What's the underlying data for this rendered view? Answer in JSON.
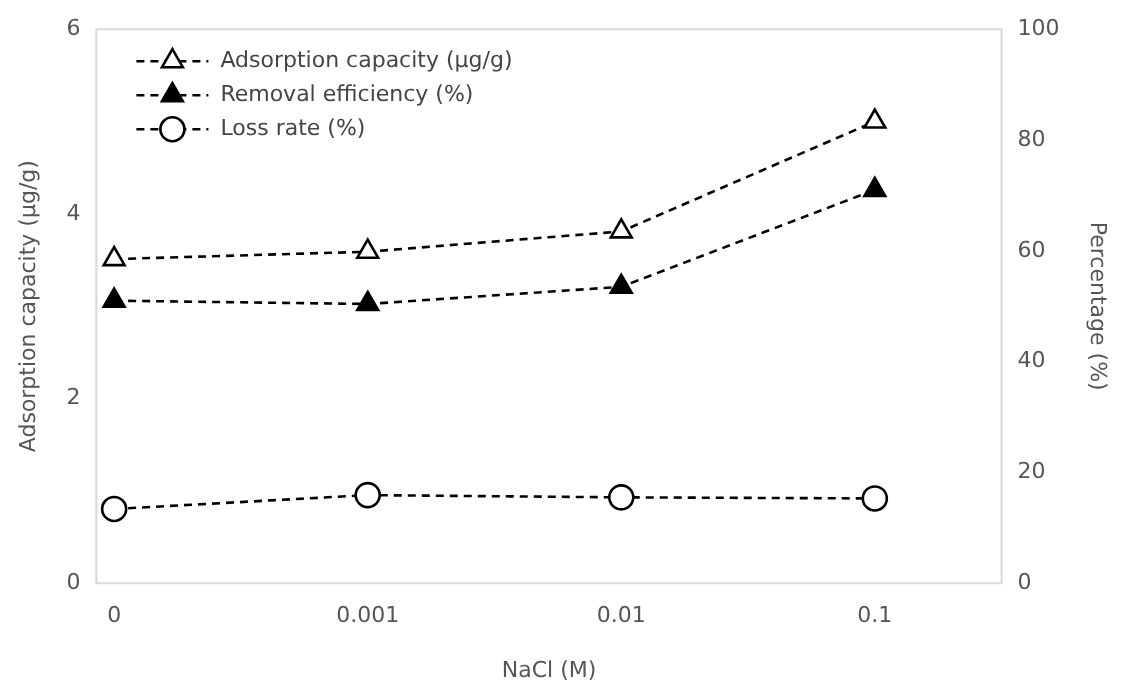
{
  "chart_data": {
    "type": "line",
    "xlabel": "NaCl (M)",
    "ylabel": "Adsorption capacity (μg/g)",
    "y2label": "Percentage (%)",
    "categories": [
      "0",
      "0.001",
      "0.01",
      "0.1"
    ],
    "series": [
      {
        "name": "Adsorption capacity (μg/g)",
        "color": "#000000",
        "marker": "triangle",
        "values": [
          3.51,
          3.59,
          3.81,
          5.0
        ]
      },
      {
        "name": "Removal efficiency (%)",
        "color": "#000000",
        "marker": "triangle",
        "axis": "y2",
        "values": [
          51.0,
          50.4,
          53.5,
          71.0
        ]
      },
      {
        "name": "Loss rate (%)",
        "color": "#000000",
        "marker": "circle",
        "axis": "y2",
        "values": [
          13.4,
          15.9,
          15.5,
          15.3
        ]
      }
    ],
    "ylim": [
      0,
      6
    ],
    "yticks": [
      0,
      2,
      4,
      6
    ],
    "y2lim": [
      0,
      100
    ],
    "y2ticks": [
      0,
      20,
      40,
      60,
      80,
      100
    ],
    "grid": false,
    "legend": "top left",
    "line_style": "dashed"
  }
}
